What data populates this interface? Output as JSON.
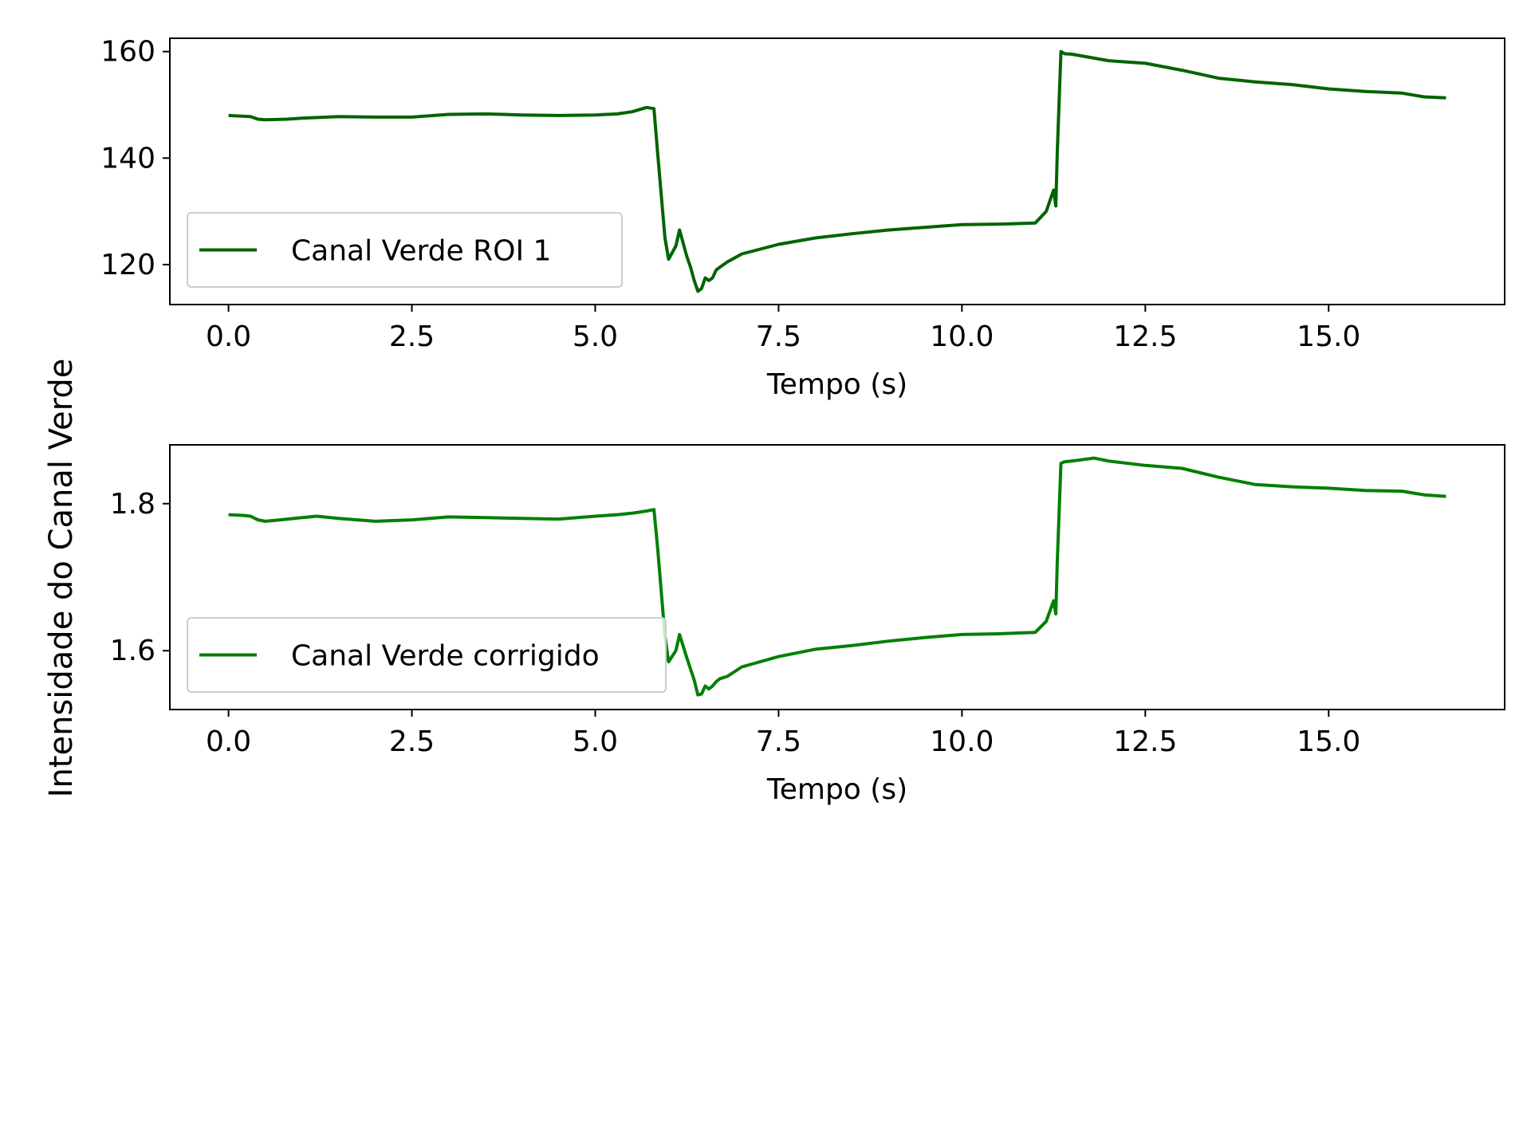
{
  "figure": {
    "ylabel": "Intensidade do Canal Verde"
  },
  "chart_data": [
    {
      "type": "line",
      "xlabel": "Tempo (s)",
      "xlim": [
        -0.8,
        17.4
      ],
      "ylim": [
        112.5,
        162.5
      ],
      "xticks": [
        0.0,
        2.5,
        5.0,
        7.5,
        10.0,
        12.5,
        15.0
      ],
      "xtick_labels": [
        "0.0",
        "2.5",
        "5.0",
        "7.5",
        "10.0",
        "12.5",
        "15.0"
      ],
      "yticks": [
        120,
        140,
        160
      ],
      "ytick_labels": [
        "120",
        "140",
        "160"
      ],
      "legend_position": "lower-left",
      "grid": false,
      "series": [
        {
          "name": "Canal Verde ROI 1",
          "color": "#006400",
          "x": [
            0.0,
            0.3,
            0.4,
            0.5,
            0.8,
            1.0,
            1.5,
            2.0,
            2.5,
            3.0,
            3.5,
            4.0,
            4.5,
            5.0,
            5.3,
            5.5,
            5.7,
            5.8,
            5.85,
            5.9,
            5.95,
            6.0,
            6.1,
            6.15,
            6.25,
            6.3,
            6.35,
            6.4,
            6.45,
            6.5,
            6.55,
            6.6,
            6.65,
            6.7,
            6.8,
            7.0,
            7.5,
            8.0,
            8.5,
            9.0,
            9.5,
            10.0,
            10.5,
            11.0,
            11.15,
            11.25,
            11.28,
            11.3,
            11.35,
            11.4,
            11.5,
            12.0,
            12.5,
            13.0,
            13.5,
            14.0,
            14.5,
            15.0,
            15.5,
            16.0,
            16.3,
            16.6
          ],
          "y": [
            148.0,
            147.8,
            147.3,
            147.2,
            147.3,
            147.5,
            147.8,
            147.7,
            147.7,
            148.2,
            148.3,
            148.1,
            148.0,
            148.1,
            148.3,
            148.7,
            149.5,
            149.3,
            141.0,
            133.0,
            125.0,
            121.0,
            123.5,
            126.5,
            121.5,
            119.5,
            117.0,
            115.0,
            115.5,
            117.5,
            117.0,
            117.5,
            119.0,
            119.5,
            120.5,
            122.0,
            123.8,
            125.0,
            125.8,
            126.5,
            127.0,
            127.5,
            127.6,
            127.8,
            130.0,
            134.0,
            131.0,
            141.0,
            160.0,
            159.6,
            159.5,
            158.3,
            157.8,
            156.5,
            155.0,
            154.3,
            153.8,
            153.0,
            152.5,
            152.2,
            151.5,
            151.3
          ]
        }
      ]
    },
    {
      "type": "line",
      "xlabel": "Tempo (s)",
      "xlim": [
        -0.8,
        17.4
      ],
      "ylim": [
        1.52,
        1.88
      ],
      "xticks": [
        0.0,
        2.5,
        5.0,
        7.5,
        10.0,
        12.5,
        15.0
      ],
      "xtick_labels": [
        "0.0",
        "2.5",
        "5.0",
        "7.5",
        "10.0",
        "12.5",
        "15.0"
      ],
      "yticks": [
        1.6,
        1.8
      ],
      "ytick_labels": [
        "1.6",
        "1.8"
      ],
      "legend_position": "lower-left",
      "grid": false,
      "series": [
        {
          "name": "Canal Verde corrigido",
          "color": "#008000",
          "x": [
            0.0,
            0.2,
            0.3,
            0.4,
            0.5,
            0.7,
            1.0,
            1.2,
            1.5,
            2.0,
            2.5,
            3.0,
            3.5,
            4.0,
            4.5,
            5.0,
            5.3,
            5.5,
            5.7,
            5.8,
            5.85,
            5.9,
            5.95,
            6.0,
            6.1,
            6.15,
            6.25,
            6.3,
            6.35,
            6.4,
            6.45,
            6.5,
            6.55,
            6.6,
            6.65,
            6.7,
            6.8,
            7.0,
            7.5,
            8.0,
            8.5,
            9.0,
            9.5,
            10.0,
            10.5,
            11.0,
            11.15,
            11.25,
            11.28,
            11.3,
            11.35,
            11.4,
            11.5,
            11.8,
            12.0,
            12.5,
            13.0,
            13.5,
            14.0,
            14.5,
            15.0,
            15.5,
            16.0,
            16.3,
            16.6
          ],
          "y": [
            1.785,
            1.784,
            1.783,
            1.778,
            1.776,
            1.778,
            1.781,
            1.783,
            1.78,
            1.776,
            1.778,
            1.782,
            1.781,
            1.78,
            1.779,
            1.783,
            1.785,
            1.787,
            1.79,
            1.792,
            1.74,
            1.68,
            1.62,
            1.585,
            1.6,
            1.622,
            1.59,
            1.575,
            1.56,
            1.54,
            1.541,
            1.552,
            1.548,
            1.552,
            1.558,
            1.562,
            1.565,
            1.578,
            1.592,
            1.602,
            1.607,
            1.613,
            1.618,
            1.622,
            1.623,
            1.625,
            1.64,
            1.668,
            1.65,
            1.72,
            1.855,
            1.857,
            1.858,
            1.862,
            1.858,
            1.852,
            1.848,
            1.836,
            1.826,
            1.823,
            1.821,
            1.818,
            1.817,
            1.812,
            1.81
          ]
        }
      ]
    }
  ]
}
